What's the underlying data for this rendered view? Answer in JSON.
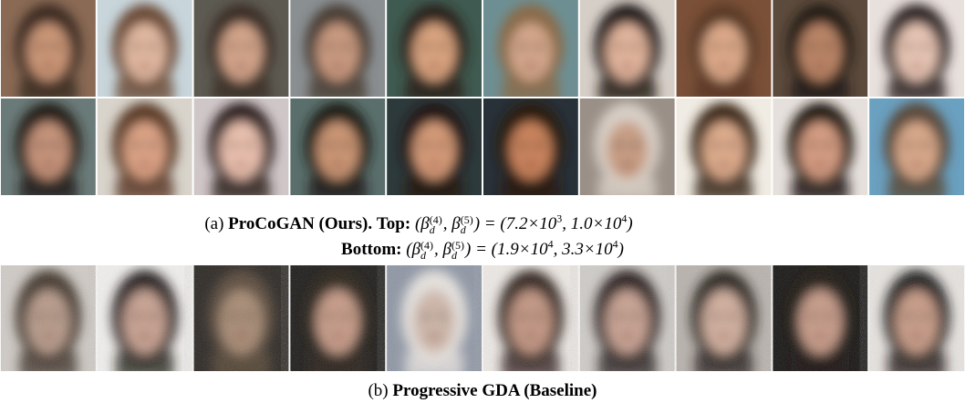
{
  "caption_a": {
    "label": "(a)",
    "title": "ProCoGAN (Ours).",
    "top_label": "Top:",
    "top_formula": [
      {
        "text": "(β",
        "sub": "d",
        "sup": "(4)"
      },
      {
        "text": ", β",
        "sub": "d",
        "sup": "(5)"
      },
      {
        "text": ") = (7.2×10",
        "sup": "3"
      },
      {
        "text": ", 1.0×10",
        "sup": "4"
      },
      {
        "text": ")"
      }
    ],
    "bottom_label": "Bottom:",
    "bottom_formula": [
      {
        "text": "(β",
        "sub": "d",
        "sup": "(4)"
      },
      {
        "text": ", β",
        "sub": "d",
        "sup": "(5)"
      },
      {
        "text": ") = (1.9×10",
        "sup": "4"
      },
      {
        "text": ", 3.3×10",
        "sup": "4"
      },
      {
        "text": ")"
      }
    ]
  },
  "caption_b": {
    "label": "(b)",
    "title": "Progressive GDA (Baseline)"
  }
}
